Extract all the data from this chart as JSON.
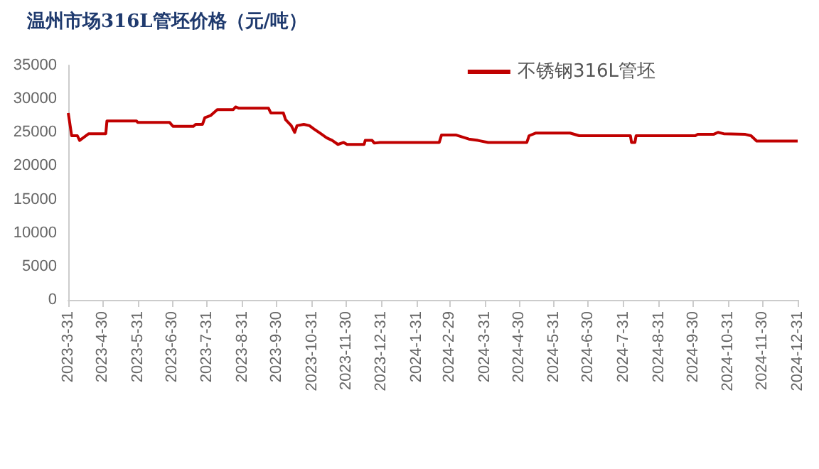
{
  "chart_data": {
    "type": "line",
    "title": "温州市场316L管坯价格（元/吨）",
    "legend": "top right",
    "grid": false,
    "marker": "none",
    "line_style": "solid",
    "ylim": [
      0,
      35000
    ],
    "yticks": [
      0,
      5000,
      10000,
      15000,
      20000,
      25000,
      30000,
      35000
    ],
    "xlim": [
      "2023-03-31",
      "2024-12-31"
    ],
    "xticks": [
      {
        "value": "2023-03-31",
        "label": "2023-3-31"
      },
      {
        "value": "2023-04-30",
        "label": "2023-4-30"
      },
      {
        "value": "2023-05-31",
        "label": "2023-5-31"
      },
      {
        "value": "2023-06-30",
        "label": "2023-6-30"
      },
      {
        "value": "2023-07-31",
        "label": "2023-7-31"
      },
      {
        "value": "2023-08-31",
        "label": "2023-8-31"
      },
      {
        "value": "2023-09-30",
        "label": "2023-9-30"
      },
      {
        "value": "2023-10-31",
        "label": "2023-10-31"
      },
      {
        "value": "2023-11-30",
        "label": "2023-11-30"
      },
      {
        "value": "2023-12-31",
        "label": "2023-12-31"
      },
      {
        "value": "2024-01-31",
        "label": "2024-1-31"
      },
      {
        "value": "2024-02-29",
        "label": "2024-2-29"
      },
      {
        "value": "2024-03-31",
        "label": "2024-3-31"
      },
      {
        "value": "2024-04-30",
        "label": "2024-4-30"
      },
      {
        "value": "2024-05-31",
        "label": "2024-5-31"
      },
      {
        "value": "2024-06-30",
        "label": "2024-6-30"
      },
      {
        "value": "2024-07-31",
        "label": "2024-7-31"
      },
      {
        "value": "2024-08-31",
        "label": "2024-8-31"
      },
      {
        "value": "2024-09-30",
        "label": "2024-9-30"
      },
      {
        "value": "2024-10-31",
        "label": "2024-10-31"
      },
      {
        "value": "2024-11-30",
        "label": "2024-11-30"
      },
      {
        "value": "2024-12-31",
        "label": "2024-12-31"
      }
    ],
    "series": [
      {
        "name": "不锈钢316L管坯",
        "color": "#c00000",
        "x": [
          "2023-03-31",
          "2023-04-03",
          "2023-04-08",
          "2023-04-10",
          "2023-04-14",
          "2023-04-18",
          "2023-05-03",
          "2023-05-04",
          "2023-05-30",
          "2023-05-31",
          "2023-06-28",
          "2023-07-01",
          "2023-07-19",
          "2023-07-21",
          "2023-07-27",
          "2023-07-29",
          "2023-08-03",
          "2023-08-09",
          "2023-08-23",
          "2023-08-25",
          "2023-08-28",
          "2023-09-23",
          "2023-09-25",
          "2023-10-06",
          "2023-10-08",
          "2023-10-13",
          "2023-10-16",
          "2023-10-18",
          "2023-10-24",
          "2023-10-29",
          "2023-11-02",
          "2023-11-08",
          "2023-11-13",
          "2023-11-18",
          "2023-11-23",
          "2023-11-28",
          "2023-12-01",
          "2023-12-16",
          "2023-12-17",
          "2023-12-23",
          "2023-12-25",
          "2023-12-30",
          "2024-02-20",
          "2024-02-22",
          "2024-03-06",
          "2024-03-17",
          "2024-03-25",
          "2024-04-03",
          "2024-05-07",
          "2024-05-09",
          "2024-05-15",
          "2024-06-14",
          "2024-06-22",
          "2024-08-06",
          "2024-08-07",
          "2024-08-10",
          "2024-08-11",
          "2024-10-02",
          "2024-10-04",
          "2024-10-18",
          "2024-10-22",
          "2024-10-27",
          "2024-11-15",
          "2024-11-20",
          "2024-11-25",
          "2024-12-31"
        ],
        "values": [
          27900,
          24500,
          24500,
          23800,
          24300,
          24800,
          24800,
          26700,
          26700,
          26500,
          26500,
          25900,
          25900,
          26200,
          26200,
          27200,
          27500,
          28400,
          28400,
          28800,
          28600,
          28600,
          27900,
          27900,
          26900,
          26000,
          25000,
          26000,
          26200,
          26000,
          25500,
          24800,
          24200,
          23800,
          23200,
          23500,
          23200,
          23200,
          23800,
          23800,
          23400,
          23500,
          23500,
          24600,
          24600,
          24000,
          23800,
          23500,
          23500,
          24500,
          24900,
          24900,
          24500,
          24500,
          23500,
          23500,
          24500,
          24500,
          24700,
          24700,
          25000,
          24800,
          24700,
          24500,
          23700,
          23700
        ]
      }
    ]
  }
}
